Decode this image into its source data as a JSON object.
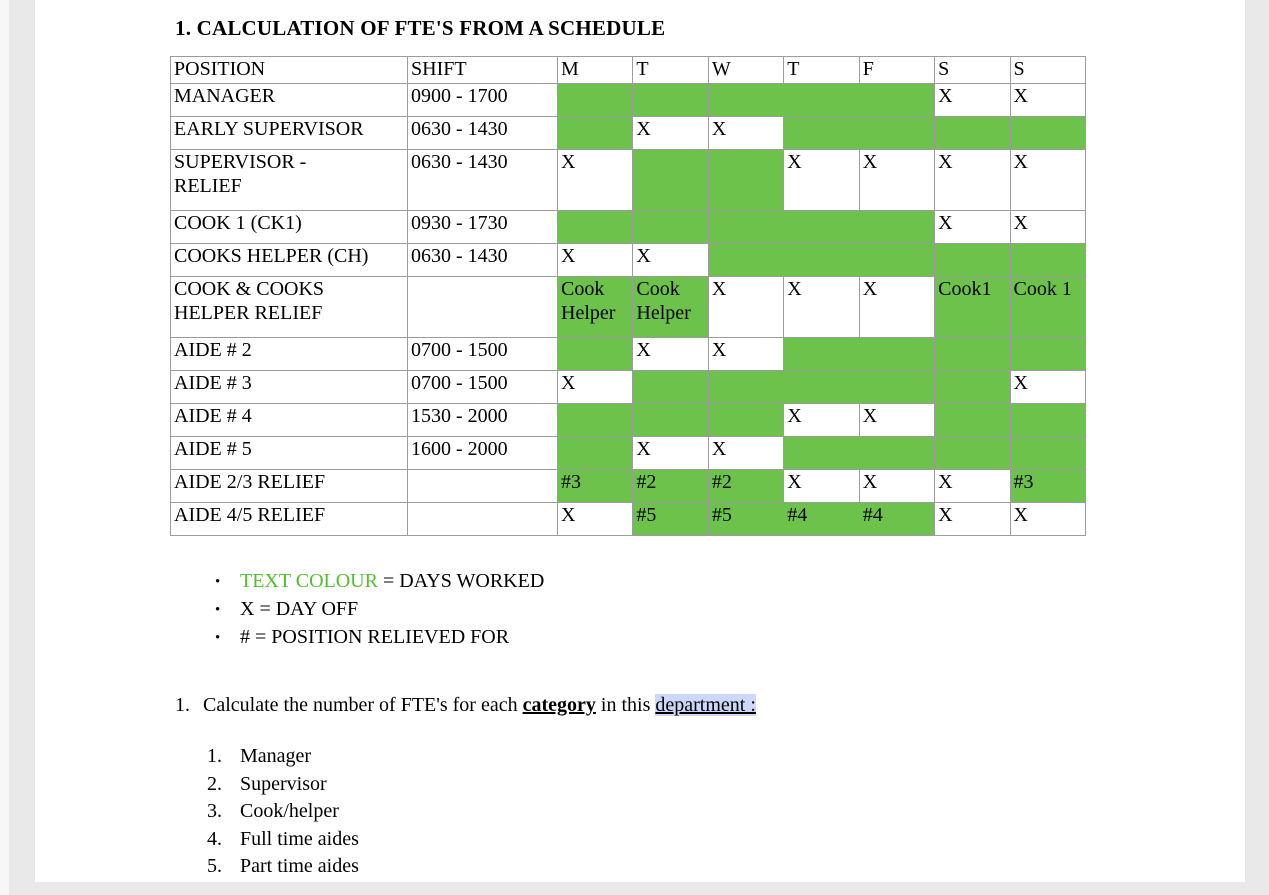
{
  "colors": {
    "cell_green": "#6cc24b",
    "legend_green": "#51bf2e",
    "highlight_blue": "#ccd8f7",
    "border": "#9c9c9c"
  },
  "title": "1. CALCULATION OF FTE'S FROM A SCHEDULE",
  "table": {
    "headers": [
      "POSITION",
      "SHIFT",
      "M",
      "T",
      "W",
      "T",
      "F",
      "S",
      "S"
    ],
    "rows": [
      {
        "position": "MANAGER",
        "shift": "0900 - 1700",
        "days": [
          {
            "text": "",
            "green": true
          },
          {
            "text": "",
            "green": true
          },
          {
            "text": "",
            "green": true
          },
          {
            "text": "",
            "green": true
          },
          {
            "text": "",
            "green": true
          },
          {
            "text": "X",
            "green": false
          },
          {
            "text": "X",
            "green": false
          }
        ]
      },
      {
        "position": "EARLY SUPERVISOR",
        "shift": "0630 - 1430",
        "days": [
          {
            "text": "",
            "green": true
          },
          {
            "text": "X",
            "green": false
          },
          {
            "text": "X",
            "green": false
          },
          {
            "text": "",
            "green": true
          },
          {
            "text": "",
            "green": true
          },
          {
            "text": "",
            "green": true
          },
          {
            "text": "",
            "green": true
          }
        ]
      },
      {
        "position": "SUPERVISOR -\nRELIEF",
        "shift": "0630 - 1430",
        "days": [
          {
            "text": "X",
            "green": false
          },
          {
            "text": "",
            "green": true
          },
          {
            "text": "",
            "green": true
          },
          {
            "text": "X",
            "green": false
          },
          {
            "text": "X",
            "green": false
          },
          {
            "text": "X",
            "green": false
          },
          {
            "text": "X",
            "green": false
          }
        ]
      },
      {
        "position": "COOK 1 (CK1)",
        "shift": "0930 - 1730",
        "days": [
          {
            "text": "",
            "green": true
          },
          {
            "text": "",
            "green": true
          },
          {
            "text": "",
            "green": true
          },
          {
            "text": "",
            "green": true
          },
          {
            "text": "",
            "green": true
          },
          {
            "text": "X",
            "green": false
          },
          {
            "text": "X",
            "green": false
          }
        ]
      },
      {
        "position": "COOKS HELPER (CH)",
        "shift": "0630 - 1430",
        "days": [
          {
            "text": "X",
            "green": false
          },
          {
            "text": "X",
            "green": false
          },
          {
            "text": "",
            "green": true
          },
          {
            "text": "",
            "green": true
          },
          {
            "text": "",
            "green": true
          },
          {
            "text": "",
            "green": true
          },
          {
            "text": "",
            "green": true
          }
        ]
      },
      {
        "position": "COOK & COOKS\nHELPER RELIEF",
        "shift": "",
        "days": [
          {
            "text": "Cook\nHelper",
            "green": true
          },
          {
            "text": "Cook\nHelper",
            "green": true
          },
          {
            "text": "X",
            "green": false
          },
          {
            "text": "X",
            "green": false
          },
          {
            "text": "X",
            "green": false
          },
          {
            "text": "Cook1",
            "green": true
          },
          {
            "text": "Cook 1",
            "green": true
          }
        ]
      },
      {
        "position": "AIDE # 2",
        "shift": "0700 - 1500",
        "days": [
          {
            "text": "",
            "green": true
          },
          {
            "text": "X",
            "green": false
          },
          {
            "text": "X",
            "green": false
          },
          {
            "text": "",
            "green": true
          },
          {
            "text": "",
            "green": true
          },
          {
            "text": "",
            "green": true
          },
          {
            "text": "",
            "green": true
          }
        ]
      },
      {
        "position": "AIDE # 3",
        "shift": "0700 - 1500",
        "days": [
          {
            "text": "X",
            "green": false
          },
          {
            "text": "",
            "green": true
          },
          {
            "text": "",
            "green": true
          },
          {
            "text": "",
            "green": true
          },
          {
            "text": "",
            "green": true
          },
          {
            "text": "",
            "green": true
          },
          {
            "text": "X",
            "green": false
          }
        ]
      },
      {
        "position": "AIDE # 4",
        "shift": "1530 - 2000",
        "days": [
          {
            "text": "",
            "green": true
          },
          {
            "text": "",
            "green": true
          },
          {
            "text": "",
            "green": true
          },
          {
            "text": "X",
            "green": false
          },
          {
            "text": "X",
            "green": false
          },
          {
            "text": "",
            "green": true
          },
          {
            "text": "",
            "green": true
          }
        ]
      },
      {
        "position": "AIDE # 5",
        "shift": "1600 - 2000",
        "days": [
          {
            "text": "",
            "green": true
          },
          {
            "text": "X",
            "green": false
          },
          {
            "text": "X",
            "green": false
          },
          {
            "text": "",
            "green": true
          },
          {
            "text": "",
            "green": true
          },
          {
            "text": "",
            "green": true
          },
          {
            "text": "",
            "green": true
          }
        ]
      },
      {
        "position": "AIDE 2/3 RELIEF",
        "shift": "",
        "days": [
          {
            "text": "#3",
            "green": true
          },
          {
            "text": "#2",
            "green": true
          },
          {
            "text": "#2",
            "green": true
          },
          {
            "text": "X",
            "green": false
          },
          {
            "text": "X",
            "green": false
          },
          {
            "text": "X",
            "green": false
          },
          {
            "text": "#3",
            "green": true
          }
        ]
      },
      {
        "position": "AIDE 4/5 RELIEF",
        "shift": "",
        "days": [
          {
            "text": "X",
            "green": false
          },
          {
            "text": "#5",
            "green": true
          },
          {
            "text": "#5",
            "green": true
          },
          {
            "text": "#4",
            "green": true
          },
          {
            "text": "#4",
            "green": true
          },
          {
            "text": "X",
            "green": false
          },
          {
            "text": "X",
            "green": false
          }
        ]
      }
    ]
  },
  "legend": [
    {
      "bullet": "•",
      "lead": "TEXT COLOUR",
      "rest": " = DAYS WORKED"
    },
    {
      "bullet": "•",
      "lead": "X",
      "rest": " = DAY OFF"
    },
    {
      "bullet": "•",
      "lead": "#",
      "rest": " = POSITION RELIEVED FOR"
    }
  ],
  "question": {
    "number": "1.",
    "part1": "Calculate the number of FTE's for each ",
    "emphasis": "category",
    "part2": " in this ",
    "link": "department :"
  },
  "categories": [
    {
      "num": "1.",
      "label": "Manager"
    },
    {
      "num": "2.",
      "label": "Supervisor"
    },
    {
      "num": "3.",
      "label": "Cook/helper"
    },
    {
      "num": "4.",
      "label": "Full time aides"
    },
    {
      "num": "5.",
      "label": "Part time aides"
    }
  ]
}
